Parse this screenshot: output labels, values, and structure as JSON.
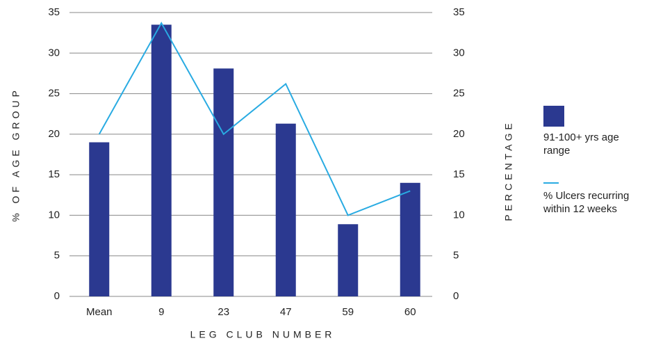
{
  "chart_data": {
    "type": "bar_line",
    "xlabel": "LEG CLUB NUMBER",
    "ylabel": "% OF AGE GROUP",
    "y2label": "PERCENTAGE",
    "categories": [
      "Mean",
      "9",
      "23",
      "47",
      "59",
      "60"
    ],
    "series": [
      {
        "name": "91-100+ yrs age range",
        "type": "bar",
        "color": "#2b3990",
        "values": [
          19,
          33.5,
          28.1,
          21.3,
          8.9,
          14
        ]
      },
      {
        "name": "% Ulcers recurring within 12 weeks",
        "type": "line",
        "axis": "y2",
        "color": "#29abe2",
        "values": [
          20,
          33.7,
          20,
          26.2,
          10,
          13
        ]
      }
    ],
    "ylim": [
      0,
      35
    ],
    "yticks": [
      0,
      5,
      10,
      15,
      20,
      25,
      30,
      35
    ],
    "y2lim": [
      0,
      35
    ],
    "y2ticks": [
      0,
      5,
      10,
      15,
      20,
      25,
      30,
      35
    ],
    "grid": true
  }
}
